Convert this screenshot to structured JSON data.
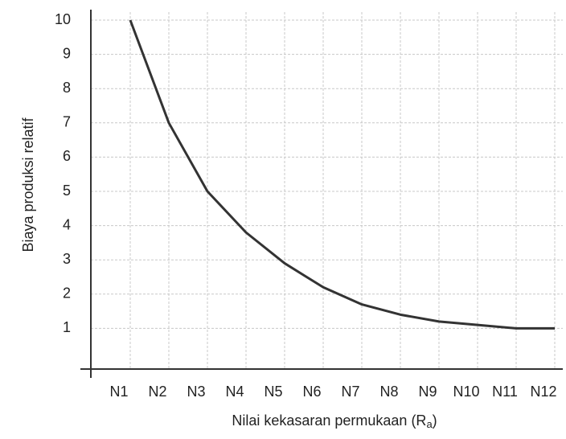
{
  "chart_data": {
    "type": "line",
    "x_label": [
      "Nilai kekasaran permukaan (R",
      "a",
      ")"
    ],
    "y_label": "Biaya produksi relatif",
    "categories": [
      "N1",
      "N2",
      "N3",
      "N4",
      "N5",
      "N6",
      "N7",
      "N8",
      "N9",
      "N10",
      "N11",
      "N12"
    ],
    "values": [
      10,
      7.0,
      5.0,
      3.8,
      2.9,
      2.2,
      1.7,
      1.4,
      1.2,
      1.1,
      1.0,
      1.0
    ],
    "color": "#333333",
    "ylim": [
      0,
      10
    ],
    "yticks": [
      1,
      2,
      3,
      4,
      5,
      6,
      7,
      8,
      9,
      10
    ],
    "grid": true
  }
}
